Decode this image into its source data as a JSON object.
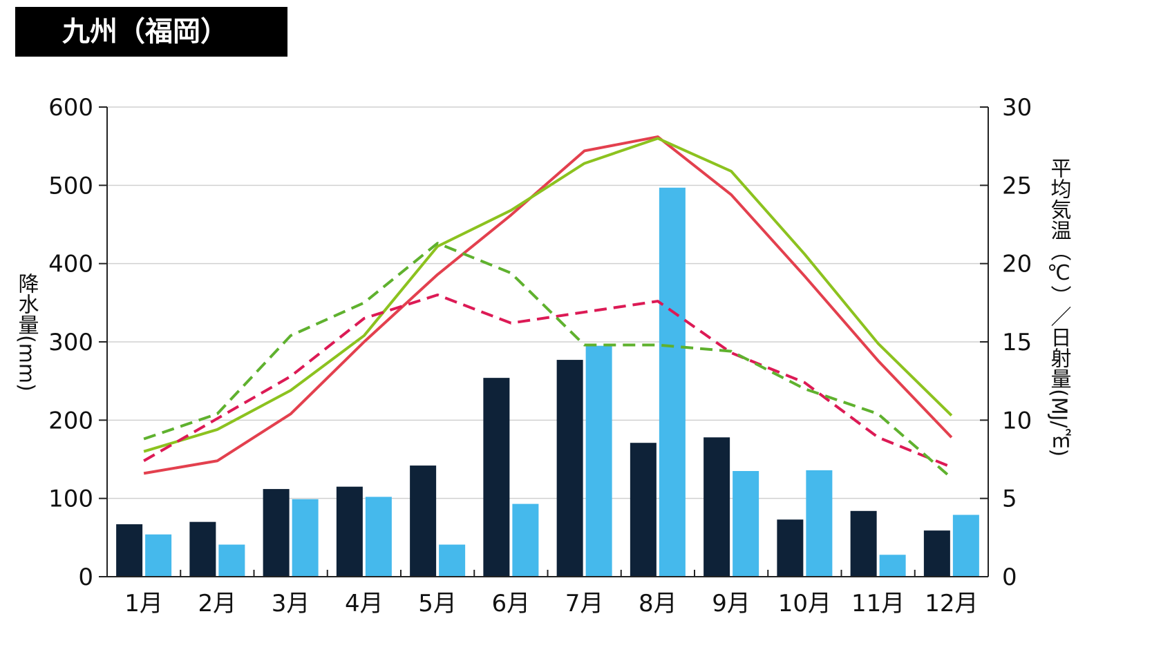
{
  "title": "九州（福岡）",
  "chart_data": {
    "type": "bar",
    "categories": [
      "1月",
      "2月",
      "3月",
      "4月",
      "5月",
      "6月",
      "7月",
      "8月",
      "9月",
      "10月",
      "11月",
      "12月"
    ],
    "ylabel_left": "降水量(mm)",
    "ylabel_right": "平均気温（℃）／日射量(MJ/㎡)",
    "ylim_left": [
      0,
      600
    ],
    "ylim_right": [
      0,
      30
    ],
    "yticks_left": [
      "0",
      "100",
      "200",
      "300",
      "400",
      "500",
      "600"
    ],
    "yticks_right": [
      "0",
      "5",
      "10",
      "15",
      "20",
      "25",
      "30"
    ],
    "grid": true,
    "bar_series": [
      {
        "color": "#0e2238",
        "values": [
          67,
          70,
          112,
          115,
          142,
          254,
          277,
          171,
          178,
          73,
          84,
          59
        ]
      },
      {
        "color": "#45b9ec",
        "values": [
          54,
          41,
          99,
          102,
          41,
          93,
          295,
          497,
          135,
          136,
          28,
          79
        ]
      }
    ],
    "line_series": [
      {
        "color": "#e3404e",
        "dashed": false,
        "values": [
          6.6,
          7.4,
          10.4,
          15.0,
          19.3,
          23.1,
          27.2,
          28.1,
          24.4,
          19.2,
          13.8,
          8.9
        ]
      },
      {
        "color": "#8cc21f",
        "dashed": false,
        "values": [
          8.0,
          9.4,
          11.9,
          15.4,
          21.1,
          23.4,
          26.4,
          28.0,
          25.9,
          20.6,
          14.9,
          10.3
        ]
      },
      {
        "color": "#dc1a55",
        "dashed": true,
        "values": [
          7.4,
          10.1,
          12.8,
          16.5,
          18.0,
          16.2,
          16.9,
          17.6,
          14.3,
          12.4,
          8.9,
          7.0
        ]
      },
      {
        "color": "#5fb12e",
        "dashed": true,
        "values": [
          8.8,
          10.4,
          15.4,
          17.5,
          21.3,
          19.4,
          14.8,
          14.8,
          14.4,
          12.0,
          10.4,
          6.3
        ]
      }
    ]
  }
}
